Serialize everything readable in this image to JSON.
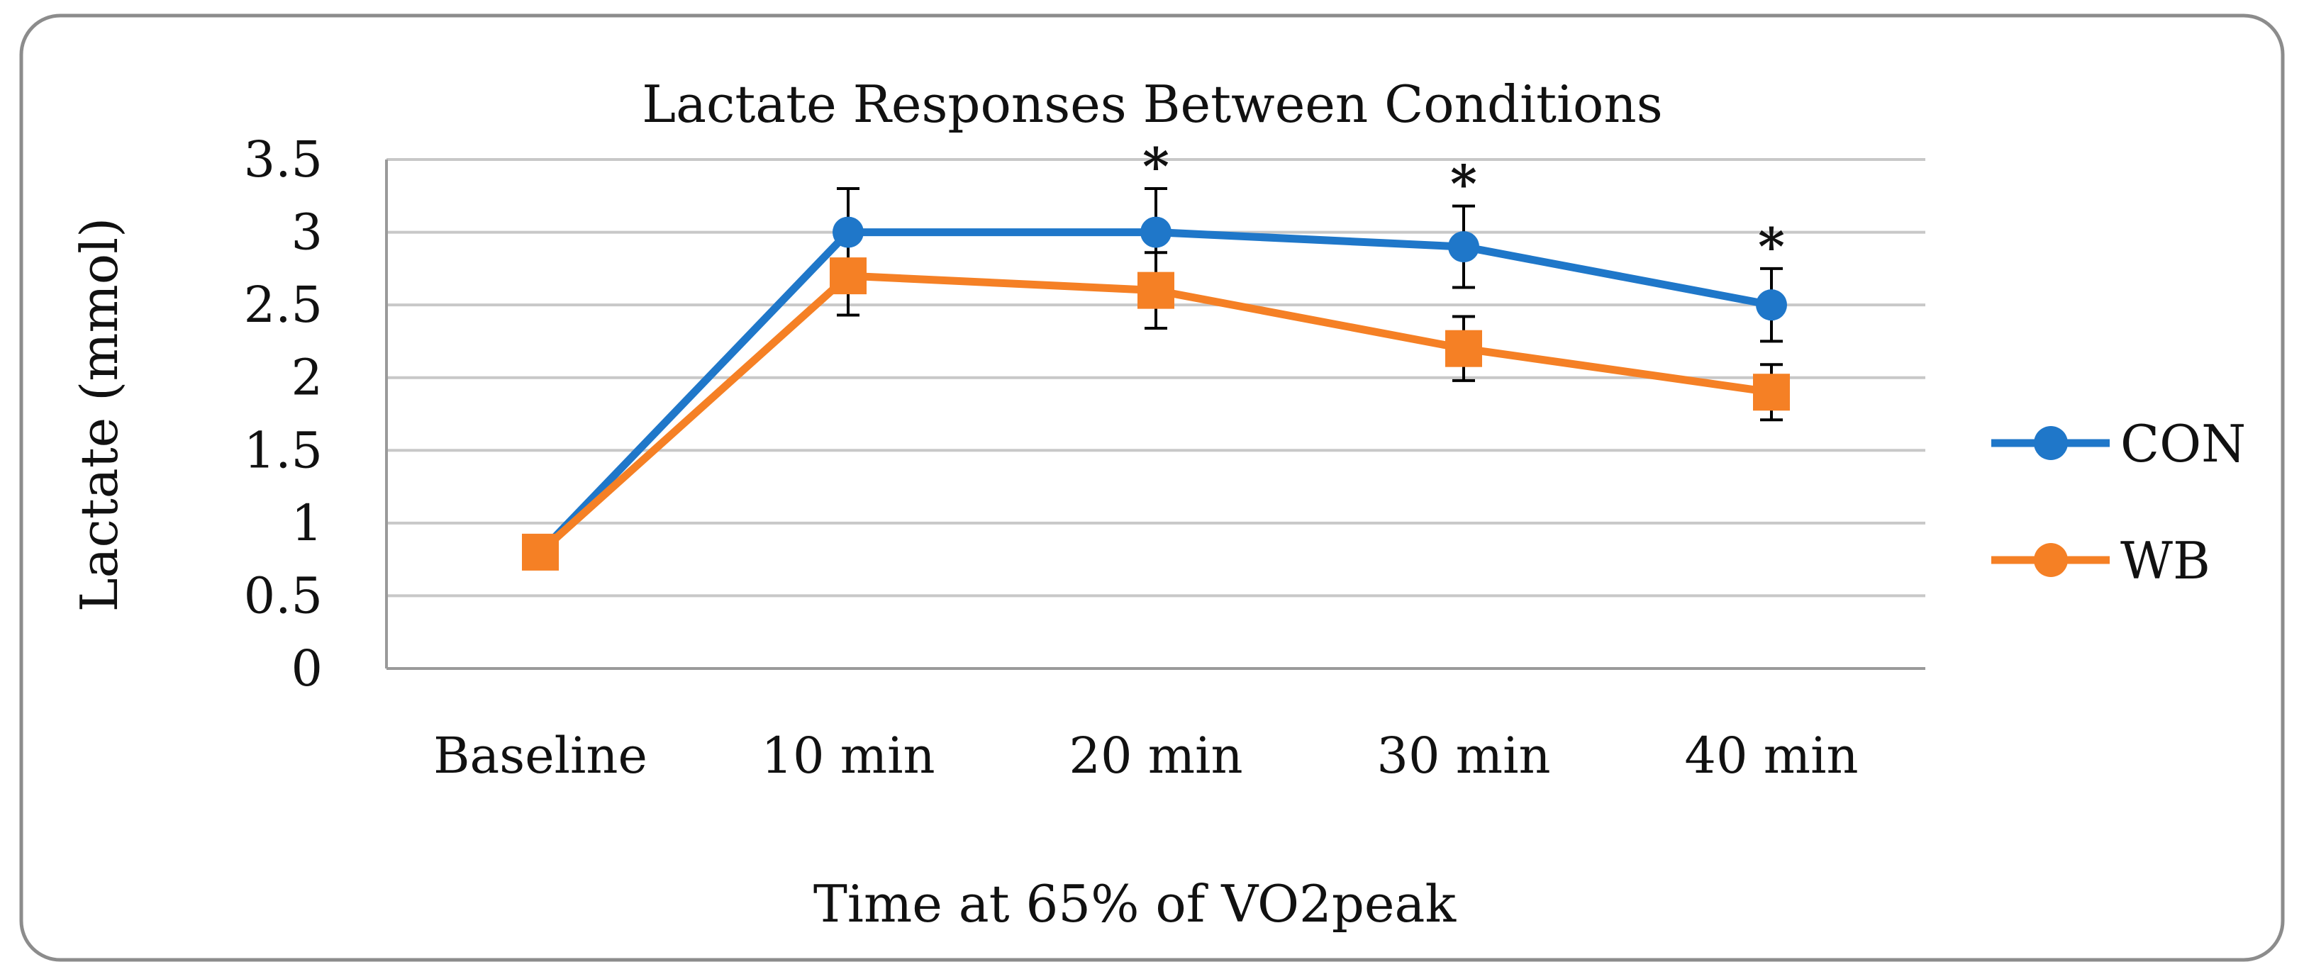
{
  "colors": {
    "con": "#1f77c9",
    "wb": "#f58025",
    "grid": "#c8c8c8",
    "axis": "#9a9a9a",
    "frame": "#8c8c8c",
    "text": "#111111"
  },
  "chart_data": {
    "type": "line",
    "title": "Lactate Responses Between Conditions",
    "xlabel": "Time at 65% of VO2peak",
    "ylabel": "Lactate (mmol)",
    "categories": [
      "Baseline",
      "10 min",
      "20 min",
      "30 min",
      "40 min"
    ],
    "ylim": [
      0,
      3.5
    ],
    "yticks": [
      "0",
      "0.5",
      "1",
      "1.5",
      "2",
      "2.5",
      "3",
      "3.5"
    ],
    "ytick_values": [
      0,
      0.5,
      1,
      1.5,
      2,
      2.5,
      3,
      3.5
    ],
    "grid": true,
    "legend_position": "right",
    "significance_marker": "*",
    "significance_indices": [
      2,
      3,
      4
    ],
    "series": [
      {
        "name": "CON",
        "marker": "circle",
        "values": [
          0.8,
          3.0,
          3.0,
          2.9,
          2.5
        ],
        "error": [
          0,
          0.3,
          0.3,
          0.28,
          0.25
        ]
      },
      {
        "name": "WB",
        "marker": "square",
        "values": [
          0.8,
          2.7,
          2.6,
          2.2,
          1.9
        ],
        "error": [
          0,
          0.27,
          0.26,
          0.22,
          0.19
        ]
      }
    ]
  }
}
